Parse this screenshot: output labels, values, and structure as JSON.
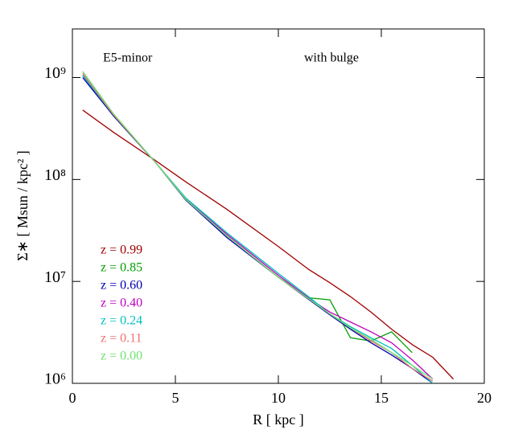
{
  "chart_data": {
    "type": "line",
    "x_label": "R [ kpc ]",
    "y_label": "Σ∗ [ Msun / kpc² ]",
    "annotations": [
      "E5-minor",
      "with bulge"
    ],
    "log_y": true,
    "x": [
      0.5,
      2,
      4,
      5.5,
      7.5,
      10,
      11.5,
      12.5,
      13.5,
      14.5,
      15.5,
      16.5,
      17.5,
      18.5
    ],
    "xlim": [
      0,
      20
    ],
    "xticks": [
      0,
      5,
      10,
      15,
      20
    ],
    "ylim": [
      1000000,
      3000000000
    ],
    "yticks": [
      {
        "value": 1000000,
        "label": "10⁶"
      },
      {
        "value": 10000000,
        "label": "10⁷"
      },
      {
        "value": 100000000,
        "label": "10⁸"
      },
      {
        "value": 1000000000,
        "label": "10⁹"
      }
    ],
    "series": [
      {
        "name": "z = 0.99",
        "color": "#a00000",
        "values": [
          480000000,
          290000000,
          155000000,
          95000000,
          51000000,
          22000000,
          13000000,
          9700000,
          7100000,
          5000000,
          3400000,
          2400000,
          1800000,
          1100000
        ]
      },
      {
        "name": "z = 0.85",
        "color": "#00a000",
        "values": [
          1050000000,
          420000000,
          150000000,
          63000000,
          28000000,
          11000000,
          6900000,
          6600000,
          2800000,
          2600000,
          3200000,
          2000000,
          null,
          null
        ]
      },
      {
        "name": "z = 0.60",
        "color": "#0000b0",
        "values": [
          1000000000,
          420000000,
          150000000,
          63000000,
          27000000,
          11000000,
          6600000,
          4700000,
          3400000,
          2500000,
          1900000,
          1400000,
          1000000,
          null
        ]
      },
      {
        "name": "z = 0.40",
        "color": "#c000c0",
        "values": [
          1050000000,
          430000000,
          150000000,
          65000000,
          29000000,
          11500000,
          6800000,
          5000000,
          4000000,
          3200000,
          2500000,
          1700000,
          1100000,
          null
        ]
      },
      {
        "name": "z = 0.24",
        "color": "#00c0c0",
        "values": [
          1050000000,
          430000000,
          150000000,
          66000000,
          30000000,
          12000000,
          7000000,
          4800000,
          3600000,
          2800000,
          2200000,
          1500000,
          1000000,
          null
        ]
      },
      {
        "name": "z = 0.11",
        "color": "#f07070",
        "values": [
          1100000000,
          430000000,
          150000000,
          64000000,
          28000000,
          11000000,
          6700000,
          4800000,
          3500000,
          2600000,
          2000000,
          1400000,
          1050000,
          null
        ]
      },
      {
        "name": "z = 0.00",
        "color": "#70e070",
        "values": [
          1150000000,
          440000000,
          150000000,
          64000000,
          28000000,
          11000000,
          6700000,
          4800000,
          3500000,
          2700000,
          2000000,
          1500000,
          1100000,
          null
        ]
      }
    ]
  }
}
